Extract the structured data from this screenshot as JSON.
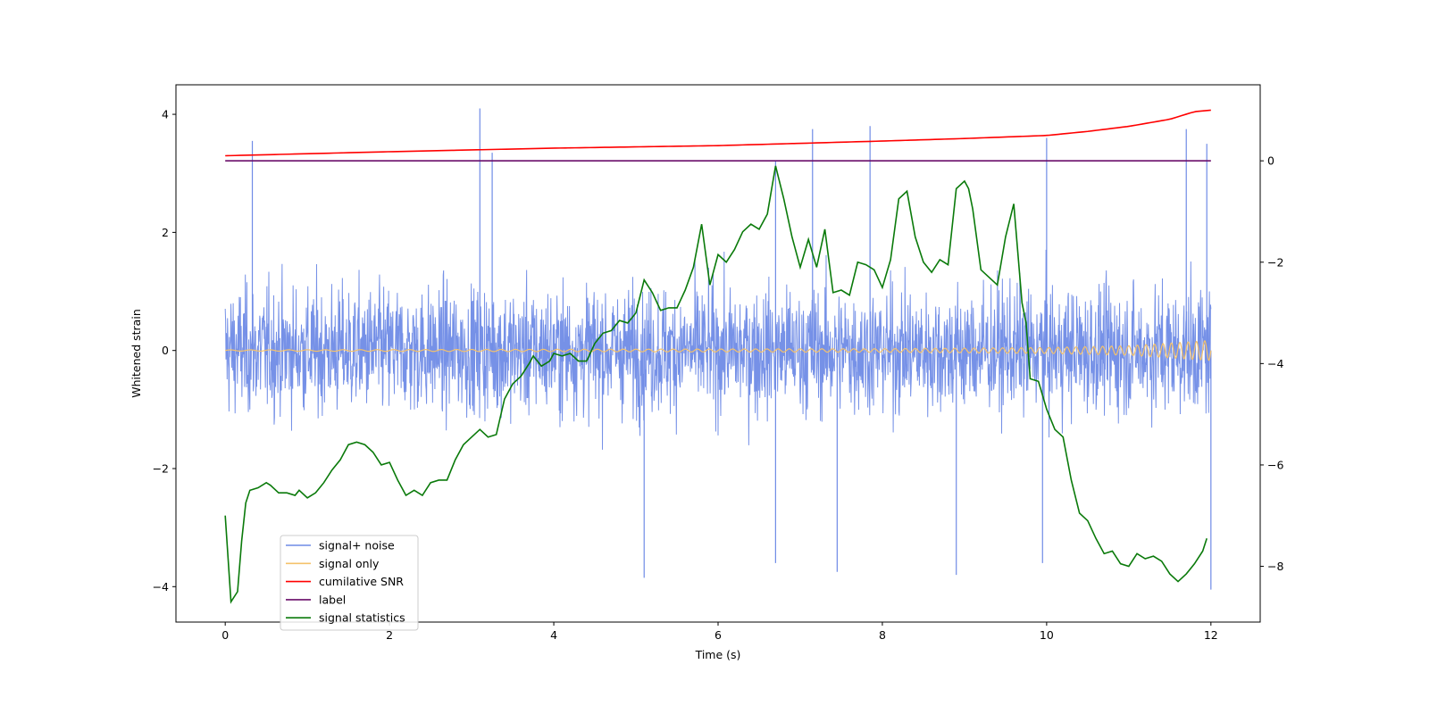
{
  "chart_data": {
    "type": "line",
    "xlabel": "Time (s)",
    "ylabel": "Whitened strain",
    "xlim": [
      -0.6,
      12.6
    ],
    "ylim": [
      -4.6,
      4.5
    ],
    "y2lim": [
      -9.1,
      1.5
    ],
    "xticks": [
      0,
      2,
      4,
      6,
      8,
      10,
      12
    ],
    "yticks": [
      -4,
      -2,
      0,
      2,
      4
    ],
    "y2ticks": [
      -8,
      -6,
      -4,
      -2,
      0
    ],
    "legend_location": "lower-left",
    "grid": false,
    "legend": [
      {
        "label": "signal+ noise",
        "color": "#6f8be6"
      },
      {
        "label": "signal only",
        "color": "#f5c26b"
      },
      {
        "label": "cumilative SNR",
        "color": "#ff0000"
      },
      {
        "label": "label",
        "color": "#6a0d6a"
      },
      {
        "label": "signal statistics",
        "color": "#0a7a0a"
      }
    ],
    "series": [
      {
        "name": "signal+ noise",
        "axis": "left",
        "color": "#6f8be6",
        "x_range": [
          0,
          12
        ],
        "envelope_typical": [
          -1.5,
          1.5
        ],
        "visible_spikes": [
          {
            "x": 0.33,
            "y": 3.55
          },
          {
            "x": 3.1,
            "y": 4.1
          },
          {
            "x": 3.25,
            "y": 3.35
          },
          {
            "x": 6.7,
            "y": 3.2
          },
          {
            "x": 7.15,
            "y": 3.75
          },
          {
            "x": 7.85,
            "y": 3.8
          },
          {
            "x": 10.0,
            "y": 3.6
          },
          {
            "x": 11.7,
            "y": 3.75
          },
          {
            "x": 11.95,
            "y": 3.5
          },
          {
            "x": 5.1,
            "y": -3.85
          },
          {
            "x": 6.7,
            "y": -3.6
          },
          {
            "x": 7.45,
            "y": -3.75
          },
          {
            "x": 8.9,
            "y": -3.8
          },
          {
            "x": 9.95,
            "y": -3.6
          },
          {
            "x": 12.0,
            "y": -4.05
          }
        ]
      },
      {
        "name": "signal only",
        "axis": "left",
        "color": "#f5c26b",
        "x_range": [
          0,
          12
        ],
        "amplitude": [
          {
            "x": 0,
            "y": 0.01
          },
          {
            "x": 8,
            "y": 0.03
          },
          {
            "x": 10,
            "y": 0.05
          },
          {
            "x": 11,
            "y": 0.08
          },
          {
            "x": 12,
            "y": 0.17
          }
        ]
      },
      {
        "name": "cumilative SNR",
        "axis": "right",
        "color": "#ff0000",
        "x": [
          0,
          2,
          4,
          6,
          8,
          9,
          10,
          10.5,
          11,
          11.5,
          11.8,
          12
        ],
        "y": [
          0.1,
          0.18,
          0.25,
          0.3,
          0.39,
          0.44,
          0.5,
          0.58,
          0.68,
          0.82,
          0.97,
          1.0
        ]
      },
      {
        "name": "label",
        "axis": "right",
        "color": "#6a0d6a",
        "x": [
          0,
          12
        ],
        "y": [
          0,
          0
        ]
      },
      {
        "name": "signal statistics",
        "axis": "right",
        "color": "#0a7a0a",
        "x": [
          0,
          0.07,
          0.15,
          0.2,
          0.25,
          0.3,
          0.4,
          0.5,
          0.55,
          0.65,
          0.75,
          0.85,
          0.9,
          1.0,
          1.1,
          1.2,
          1.3,
          1.4,
          1.5,
          1.6,
          1.7,
          1.8,
          1.9,
          2.0,
          2.1,
          2.2,
          2.3,
          2.4,
          2.5,
          2.6,
          2.7,
          2.8,
          2.9,
          3.0,
          3.1,
          3.2,
          3.3,
          3.4,
          3.5,
          3.6,
          3.7,
          3.75,
          3.85,
          3.95,
          4.0,
          4.1,
          4.2,
          4.3,
          4.4,
          4.5,
          4.6,
          4.7,
          4.8,
          4.9,
          5.0,
          5.1,
          5.2,
          5.3,
          5.4,
          5.5,
          5.6,
          5.7,
          5.8,
          5.9,
          6.0,
          6.1,
          6.2,
          6.3,
          6.4,
          6.5,
          6.6,
          6.7,
          6.8,
          6.9,
          7.0,
          7.1,
          7.2,
          7.3,
          7.4,
          7.5,
          7.6,
          7.7,
          7.8,
          7.9,
          8.0,
          8.1,
          8.2,
          8.3,
          8.4,
          8.5,
          8.6,
          8.7,
          8.8,
          8.9,
          9.0,
          9.05,
          9.1,
          9.2,
          9.3,
          9.4,
          9.5,
          9.6,
          9.7,
          9.75,
          9.8,
          9.9,
          10.0,
          10.1,
          10.2,
          10.3,
          10.4,
          10.5,
          10.6,
          10.7,
          10.8,
          10.9,
          11.0,
          11.1,
          11.2,
          11.3,
          11.4,
          11.5,
          11.6,
          11.7,
          11.8,
          11.9,
          11.95
        ],
        "y": [
          -7.0,
          -8.7,
          -8.5,
          -7.5,
          -6.75,
          -6.5,
          -6.45,
          -6.35,
          -6.4,
          -6.55,
          -6.55,
          -6.6,
          -6.5,
          -6.65,
          -6.55,
          -6.35,
          -6.1,
          -5.9,
          -5.6,
          -5.55,
          -5.6,
          -5.75,
          -6.0,
          -5.95,
          -6.3,
          -6.6,
          -6.5,
          -6.6,
          -6.35,
          -6.3,
          -6.3,
          -5.9,
          -5.6,
          -5.45,
          -5.3,
          -5.45,
          -5.4,
          -4.7,
          -4.4,
          -4.25,
          -4.0,
          -3.85,
          -4.05,
          -3.95,
          -3.8,
          -3.85,
          -3.8,
          -3.95,
          -3.95,
          -3.6,
          -3.4,
          -3.35,
          -3.15,
          -3.2,
          -3.0,
          -2.35,
          -2.6,
          -2.95,
          -2.9,
          -2.9,
          -2.55,
          -2.1,
          -1.25,
          -2.45,
          -1.85,
          -2.0,
          -1.75,
          -1.4,
          -1.25,
          -1.35,
          -1.05,
          -0.1,
          -0.75,
          -1.5,
          -2.1,
          -1.55,
          -2.1,
          -1.35,
          -2.6,
          -2.55,
          -2.65,
          -2.0,
          -2.05,
          -2.15,
          -2.5,
          -1.95,
          -0.75,
          -0.6,
          -1.5,
          -2.0,
          -2.2,
          -1.95,
          -2.05,
          -0.55,
          -0.4,
          -0.55,
          -0.95,
          -2.15,
          -2.3,
          -2.45,
          -1.5,
          -0.85,
          -2.8,
          -3.2,
          -4.3,
          -4.35,
          -4.9,
          -5.3,
          -5.45,
          -6.3,
          -6.95,
          -7.1,
          -7.45,
          -7.75,
          -7.7,
          -7.95,
          -8.0,
          -7.75,
          -7.85,
          -7.8,
          -7.9,
          -8.15,
          -8.3,
          -8.15,
          -7.95,
          -7.7,
          -7.45
        ]
      }
    ]
  }
}
